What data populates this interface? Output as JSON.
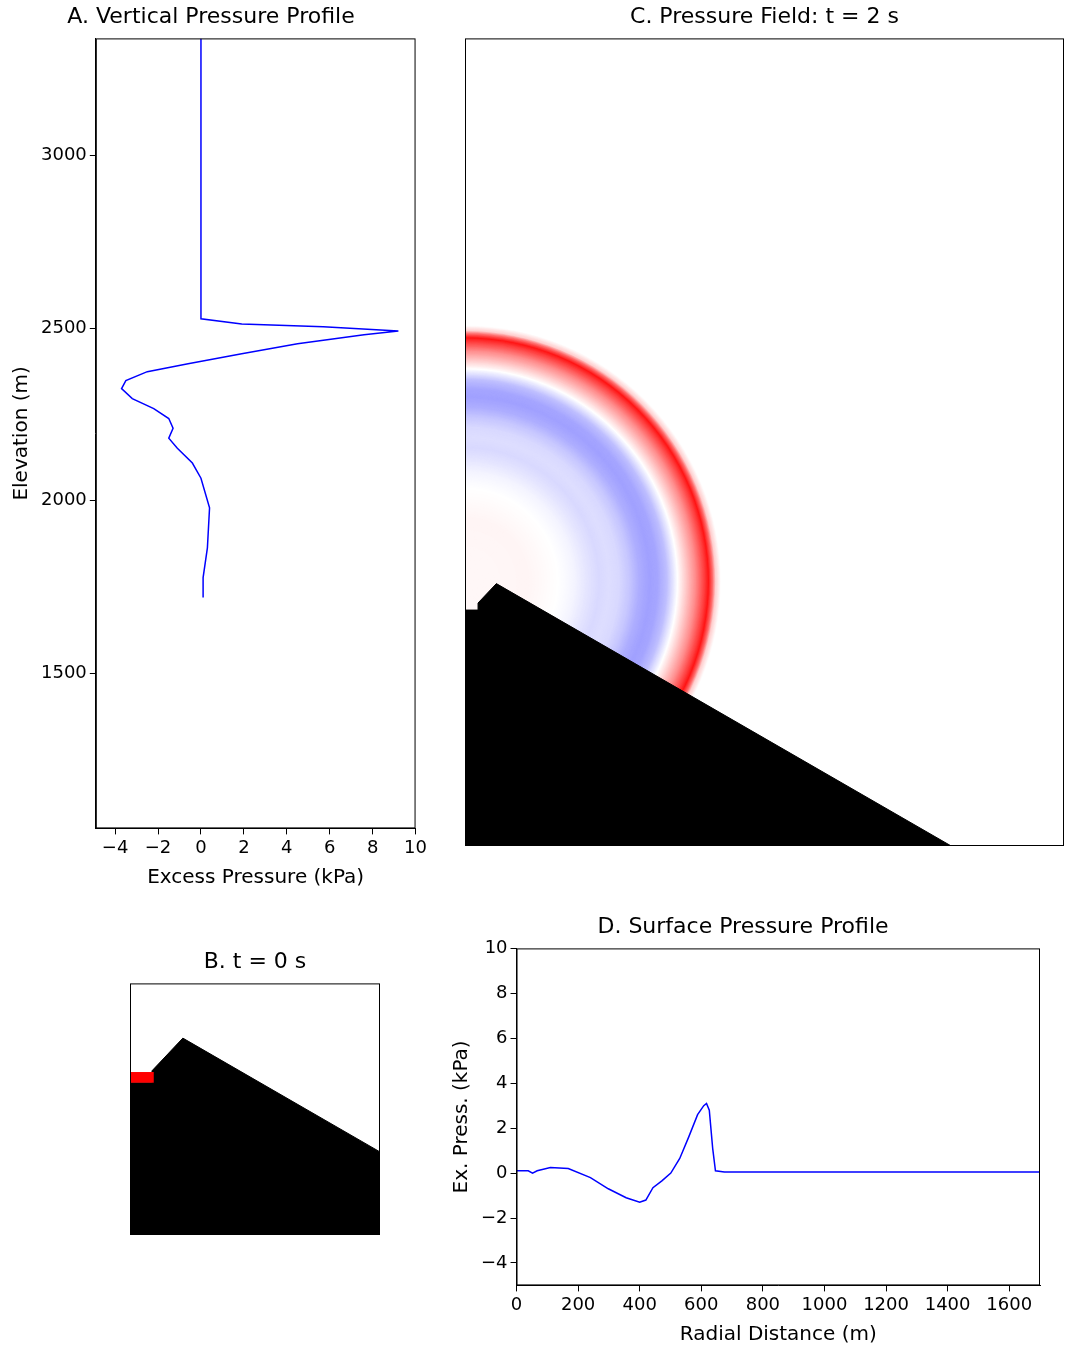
{
  "chart_data": [
    {
      "type": "line",
      "title": "A. Vertical Pressure Profile",
      "x_label": "Excess Pressure (kPa)",
      "y_label": "Elevation (m)",
      "x": [
        0,
        0,
        1.9,
        5.7,
        9.2,
        7.6,
        4.5,
        1.9,
        -0.6,
        -2.5,
        -3.5,
        -3.7,
        -3.2,
        -2.2,
        -1.5,
        -1.3,
        -1.5,
        -1.1,
        -0.4,
        0,
        0.4,
        0.3,
        0.1,
        0.1
      ],
      "y": [
        3340,
        2527,
        2512,
        2504,
        2492,
        2481,
        2455,
        2426,
        2397,
        2374,
        2348,
        2325,
        2296,
        2267,
        2238,
        2210,
        2181,
        2152,
        2109,
        2065,
        1979,
        1863,
        1777,
        1719
      ],
      "color": "#0000ff",
      "xlim": [
        -4.9,
        10
      ],
      "xticks": [
        {
          "value": -4,
          "label": "−4"
        },
        {
          "value": -2,
          "label": "−2"
        },
        0,
        2,
        4,
        6,
        8,
        10
      ],
      "ylim": [
        1050,
        3340
      ],
      "yticks": [
        1500,
        2000,
        2500,
        3000
      ],
      "grid": false
    },
    {
      "type": "diagram",
      "title": "B. t = 0 s",
      "terrain": {
        "x": [
          0,
          37,
          37,
          89,
          1380
        ],
        "y": [
          1719,
          1719,
          1739,
          1794,
          1050
        ]
      },
      "source": {
        "x": [
          0,
          40
        ],
        "y": [
          1719,
          1737
        ]
      },
      "color": "#ff0000",
      "xlim": [
        0,
        421
      ],
      "ylim": [
        1463,
        1886
      ],
      "tick_labels": false
    },
    {
      "type": "heatmap",
      "title": "C. Pressure Field: t = 2 s",
      "terrain": {
        "x": [
          0,
          37,
          37,
          89,
          1380
        ],
        "y": [
          1719,
          1719,
          1739,
          1794,
          1050
        ]
      },
      "field_center": {
        "x": 0,
        "y": 1800
      },
      "clim": [
        -10,
        10
      ],
      "xlim": [
        0,
        1700
      ],
      "ylim": [
        1050,
        3340
      ],
      "tick_labels": false
    },
    {
      "type": "line",
      "title": "D. Surface Pressure Profile",
      "x_label": "Radial Distance (m)",
      "y_label": "Ex. Press. (kPa)",
      "x": [
        0,
        38,
        52,
        67,
        110,
        168,
        240,
        298,
        356,
        400,
        420,
        443,
        472,
        501,
        530,
        559,
        588,
        608,
        617,
        626,
        637,
        646,
        675,
        1700
      ],
      "values": [
        0.1,
        0.1,
        0,
        0.1,
        0.25,
        0.2,
        -0.2,
        -0.7,
        -1.1,
        -1.3,
        -1.2,
        -0.65,
        -0.35,
        0,
        0.65,
        1.6,
        2.6,
        3.0,
        3.1,
        2.8,
        1.1,
        0.1,
        0.05,
        0.05
      ],
      "color": "#0000ff",
      "xlim": [
        0,
        1700
      ],
      "xticks": [
        0,
        200,
        400,
        600,
        800,
        1000,
        1200,
        1400,
        1600
      ],
      "ylim": [
        -5,
        10
      ],
      "yticks": [
        {
          "value": -4,
          "label": "−4"
        },
        {
          "value": -2,
          "label": "−2"
        },
        0,
        2,
        4,
        6,
        8,
        10
      ],
      "grid": false
    }
  ]
}
